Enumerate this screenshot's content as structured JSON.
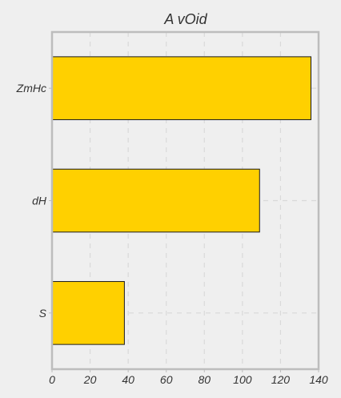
{
  "chart_data": {
    "type": "bar",
    "orientation": "horizontal",
    "title": "A vOid",
    "xlabel": "",
    "ylabel": "",
    "categories": [
      "ZmHc",
      "dH",
      "S"
    ],
    "values": [
      136,
      109,
      38
    ],
    "xlim": [
      0,
      140
    ],
    "xticks": [
      0,
      20,
      40,
      60,
      80,
      100,
      120,
      140
    ],
    "grid": true,
    "legend": "none",
    "colors": {
      "bar": "#ffd000",
      "bar_edge": "#1a1a1a",
      "background": "#efefef",
      "frame": "#bdbdbd",
      "grid": "#d9d9d9",
      "text": "#333333"
    }
  }
}
